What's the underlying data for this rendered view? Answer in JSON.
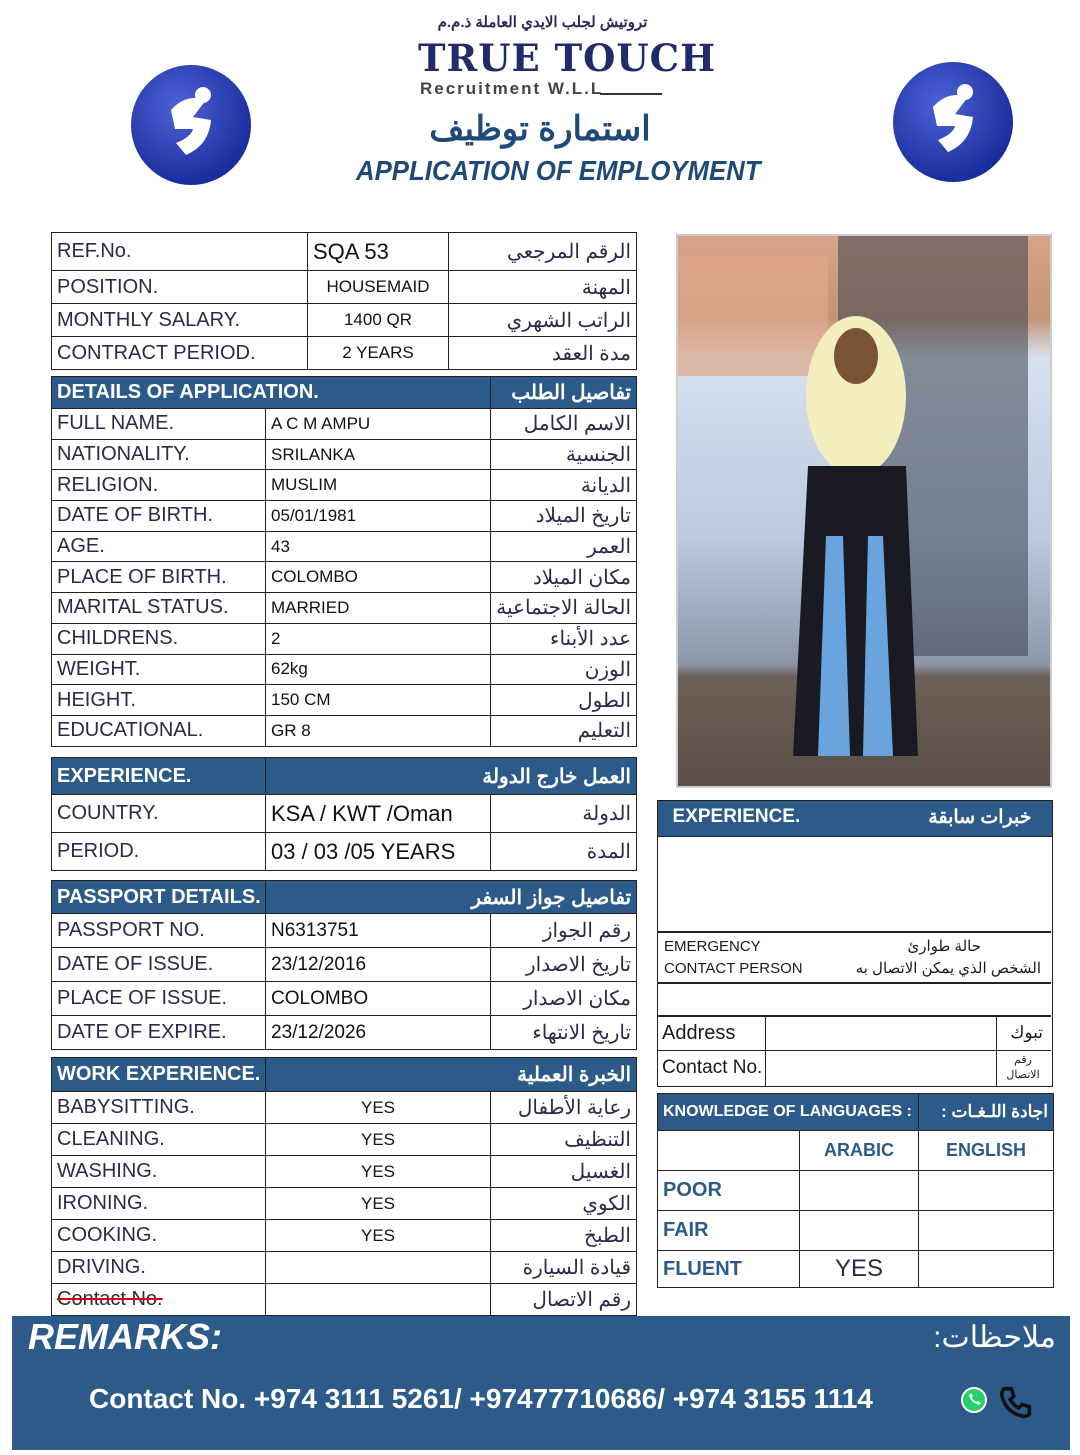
{
  "header": {
    "company_arabic": "تروتيش لجلب الايدي العاملة ذ.م.م",
    "company_name": "TRUE TOUCH",
    "company_sub": "Recruitment W.L.L",
    "title_arabic": "استمارة توظيف",
    "title": "APPLICATION OF EMPLOYMENT",
    "logo_icon": "true-touch-logo-icon"
  },
  "top": [
    {
      "label": "REF.No.",
      "value": "SQA 53",
      "ar": "الرقم المرجعي"
    },
    {
      "label": "POSITION.",
      "value": "HOUSEMAID",
      "ar": "المهنة"
    },
    {
      "label": "MONTHLY SALARY.",
      "value": "1400 QR",
      "ar": "الراتب الشهري"
    },
    {
      "label": "CONTRACT PERIOD.",
      "value": "2 YEARS",
      "ar": "مدة العقد"
    }
  ],
  "details": {
    "header": "DETAILS OF APPLICATION.",
    "header_ar": "تفاصيل الطلب",
    "rows": [
      {
        "label": "FULL NAME.",
        "value": "A C M AMPU",
        "ar": "الاسم الكامل"
      },
      {
        "label": "NATIONALITY.",
        "value": "SRILANKA",
        "ar": "الجنسية"
      },
      {
        "label": "RELIGION.",
        "value": "MUSLIM",
        "ar": "الديانة"
      },
      {
        "label": "DATE OF BIRTH.",
        "value": "05/01/1981",
        "ar": "تاريخ الميلاد"
      },
      {
        "label": "AGE.",
        "value": "43",
        "ar": "العمر"
      },
      {
        "label": "PLACE OF BIRTH.",
        "value": "COLOMBO",
        "ar": "مكان الميلاد"
      },
      {
        "label": "MARITAL STATUS.",
        "value": "MARRIED",
        "ar": "الحالة الاجتماعية"
      },
      {
        "label": "CHILDRENS.",
        "value": "2",
        "ar": "عدد الأبناء"
      },
      {
        "label": "WEIGHT.",
        "value": "62kg",
        "ar": "الوزن"
      },
      {
        "label": "HEIGHT.",
        "value": "150 CM",
        "ar": "الطول"
      },
      {
        "label": "EDUCATIONAL.",
        "value": "GR 8",
        "ar": "التعليم"
      }
    ]
  },
  "experience": {
    "header": "EXPERIENCE.",
    "header_ar": "العمل خارج الدولة",
    "rows": [
      {
        "label": "COUNTRY.",
        "value": "KSA / KWT /Oman",
        "ar": "الدولة"
      },
      {
        "label": "PERIOD.",
        "value": "03 / 03 /05  YEARS",
        "ar": "المدة"
      }
    ]
  },
  "passport": {
    "header": "PASSPORT DETAILS.",
    "header_ar": "تفاصيل جواز السفر",
    "rows": [
      {
        "label": "PASSPORT NO.",
        "value": "N6313751",
        "ar": "رقم الجواز"
      },
      {
        "label": "DATE OF ISSUE.",
        "value": "23/12/2016",
        "ar": "تاريخ الاصدار"
      },
      {
        "label": "PLACE OF ISSUE.",
        "value": "COLOMBO",
        "ar": "مكان الاصدار"
      },
      {
        "label": "DATE OF EXPIRE.",
        "value": "23/12/2026",
        "ar": "تاريخ الانتهاء"
      }
    ]
  },
  "work": {
    "header": "WORK EXPERIENCE.",
    "header_ar": "الخبرة العملية",
    "rows": [
      {
        "label": "BABYSITTING.",
        "value": "YES",
        "ar": "رعاية الأطفال"
      },
      {
        "label": "CLEANING.",
        "value": "YES",
        "ar": "التنظيف"
      },
      {
        "label": "WASHING.",
        "value": "YES",
        "ar": "الغسيل"
      },
      {
        "label": "IRONING.",
        "value": "YES",
        "ar": "الكوي"
      },
      {
        "label": "COOKING.",
        "value": "YES",
        "ar": "الطبخ"
      },
      {
        "label": "DRIVING.",
        "value": "",
        "ar": "قيادة السيارة"
      },
      {
        "label": "Contact No.",
        "value": "",
        "ar": "رقم الاتصال"
      }
    ]
  },
  "side": {
    "exp_header": "EXPERIENCE.",
    "exp_header_ar": "خبرات سابقة",
    "emergency": "EMERGENCY",
    "emergency2": "CONTACT PERSON",
    "emergency_ar": "حالة طوارئ",
    "emergency_ar2": "الشخص الذي يمكن الاتصال به",
    "address": "Address",
    "address_ar": "تبوك",
    "contact": "Contact No.",
    "contact_ar": "رقم الاتصال"
  },
  "languages": {
    "header": "KNOWLEDGE OF LANGUAGES :",
    "header_ar": "اجادة اللـغـات :",
    "cols": [
      "ARABIC",
      "ENGLISH"
    ],
    "rows": [
      {
        "level": "POOR",
        "arabic": "",
        "english": ""
      },
      {
        "level": "FAIR",
        "arabic": "",
        "english": ""
      },
      {
        "level": "FLUENT",
        "arabic": "YES",
        "english": ""
      }
    ]
  },
  "remarks": {
    "label": "REMARKS:",
    "label_ar": "ملاحظات:",
    "contact": "Contact No. +974 3111 5261/ +97477710686/  +974 3155 1114",
    "icons": [
      "whatsapp-icon",
      "phone-icon"
    ]
  },
  "colors": {
    "accent": "#2c5b8a"
  }
}
